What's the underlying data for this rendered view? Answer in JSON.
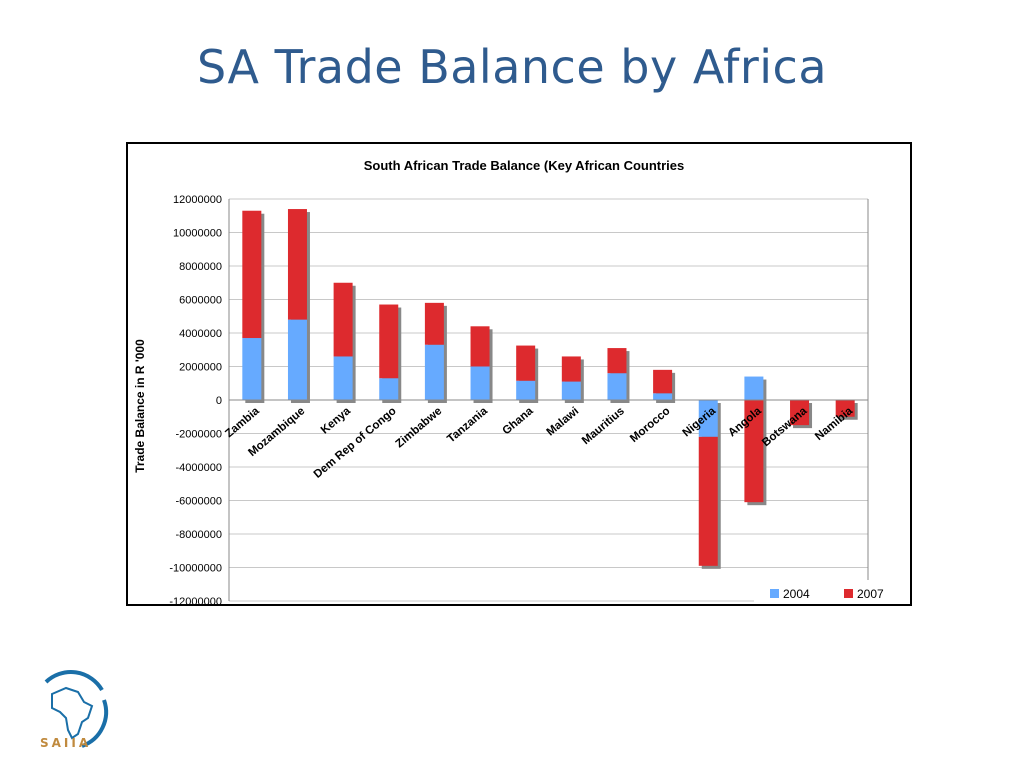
{
  "slide": {
    "title": "SA Trade Balance by Africa",
    "logo_text": "SAIIA"
  },
  "colors": {
    "title": "#2f5b8e",
    "series_2004": "#66aaff",
    "series_2007": "#dd2a2e",
    "shadow": "#888888",
    "grid": "#c8c8c8"
  },
  "chart_data": {
    "type": "bar",
    "stacked": true,
    "title": "South African Trade Balance (Key African Countries",
    "xlabel": "",
    "ylabel": "Trade Balance in R '000",
    "ylim": [
      -12000000,
      12000000
    ],
    "yticks": [
      12000000,
      10000000,
      8000000,
      6000000,
      4000000,
      2000000,
      0,
      -2000000,
      -4000000,
      -6000000,
      -8000000,
      -10000000,
      -12000000
    ],
    "grid": true,
    "legend_position": "bottom-right",
    "categories": [
      "Zambia",
      "Mozambique",
      "Kenya",
      "Dem Rep of Congo",
      "Zimbabwe",
      "Tanzania",
      "Ghana",
      "Malawi",
      "Mauritius",
      "Morocco",
      "Nigeria",
      "Angola",
      "Botswana",
      "Namibia"
    ],
    "series": [
      {
        "name": "2004",
        "values": [
          3700000,
          4800000,
          2600000,
          1300000,
          3300000,
          2000000,
          1150000,
          1100000,
          1600000,
          400000,
          -2200000,
          1400000,
          0,
          0
        ]
      },
      {
        "name": "2007",
        "values": [
          7600000,
          6600000,
          4400000,
          4400000,
          2500000,
          2400000,
          2100000,
          1500000,
          1500000,
          1400000,
          -7700000,
          -6100000,
          -1500000,
          -1000000
        ]
      }
    ]
  }
}
